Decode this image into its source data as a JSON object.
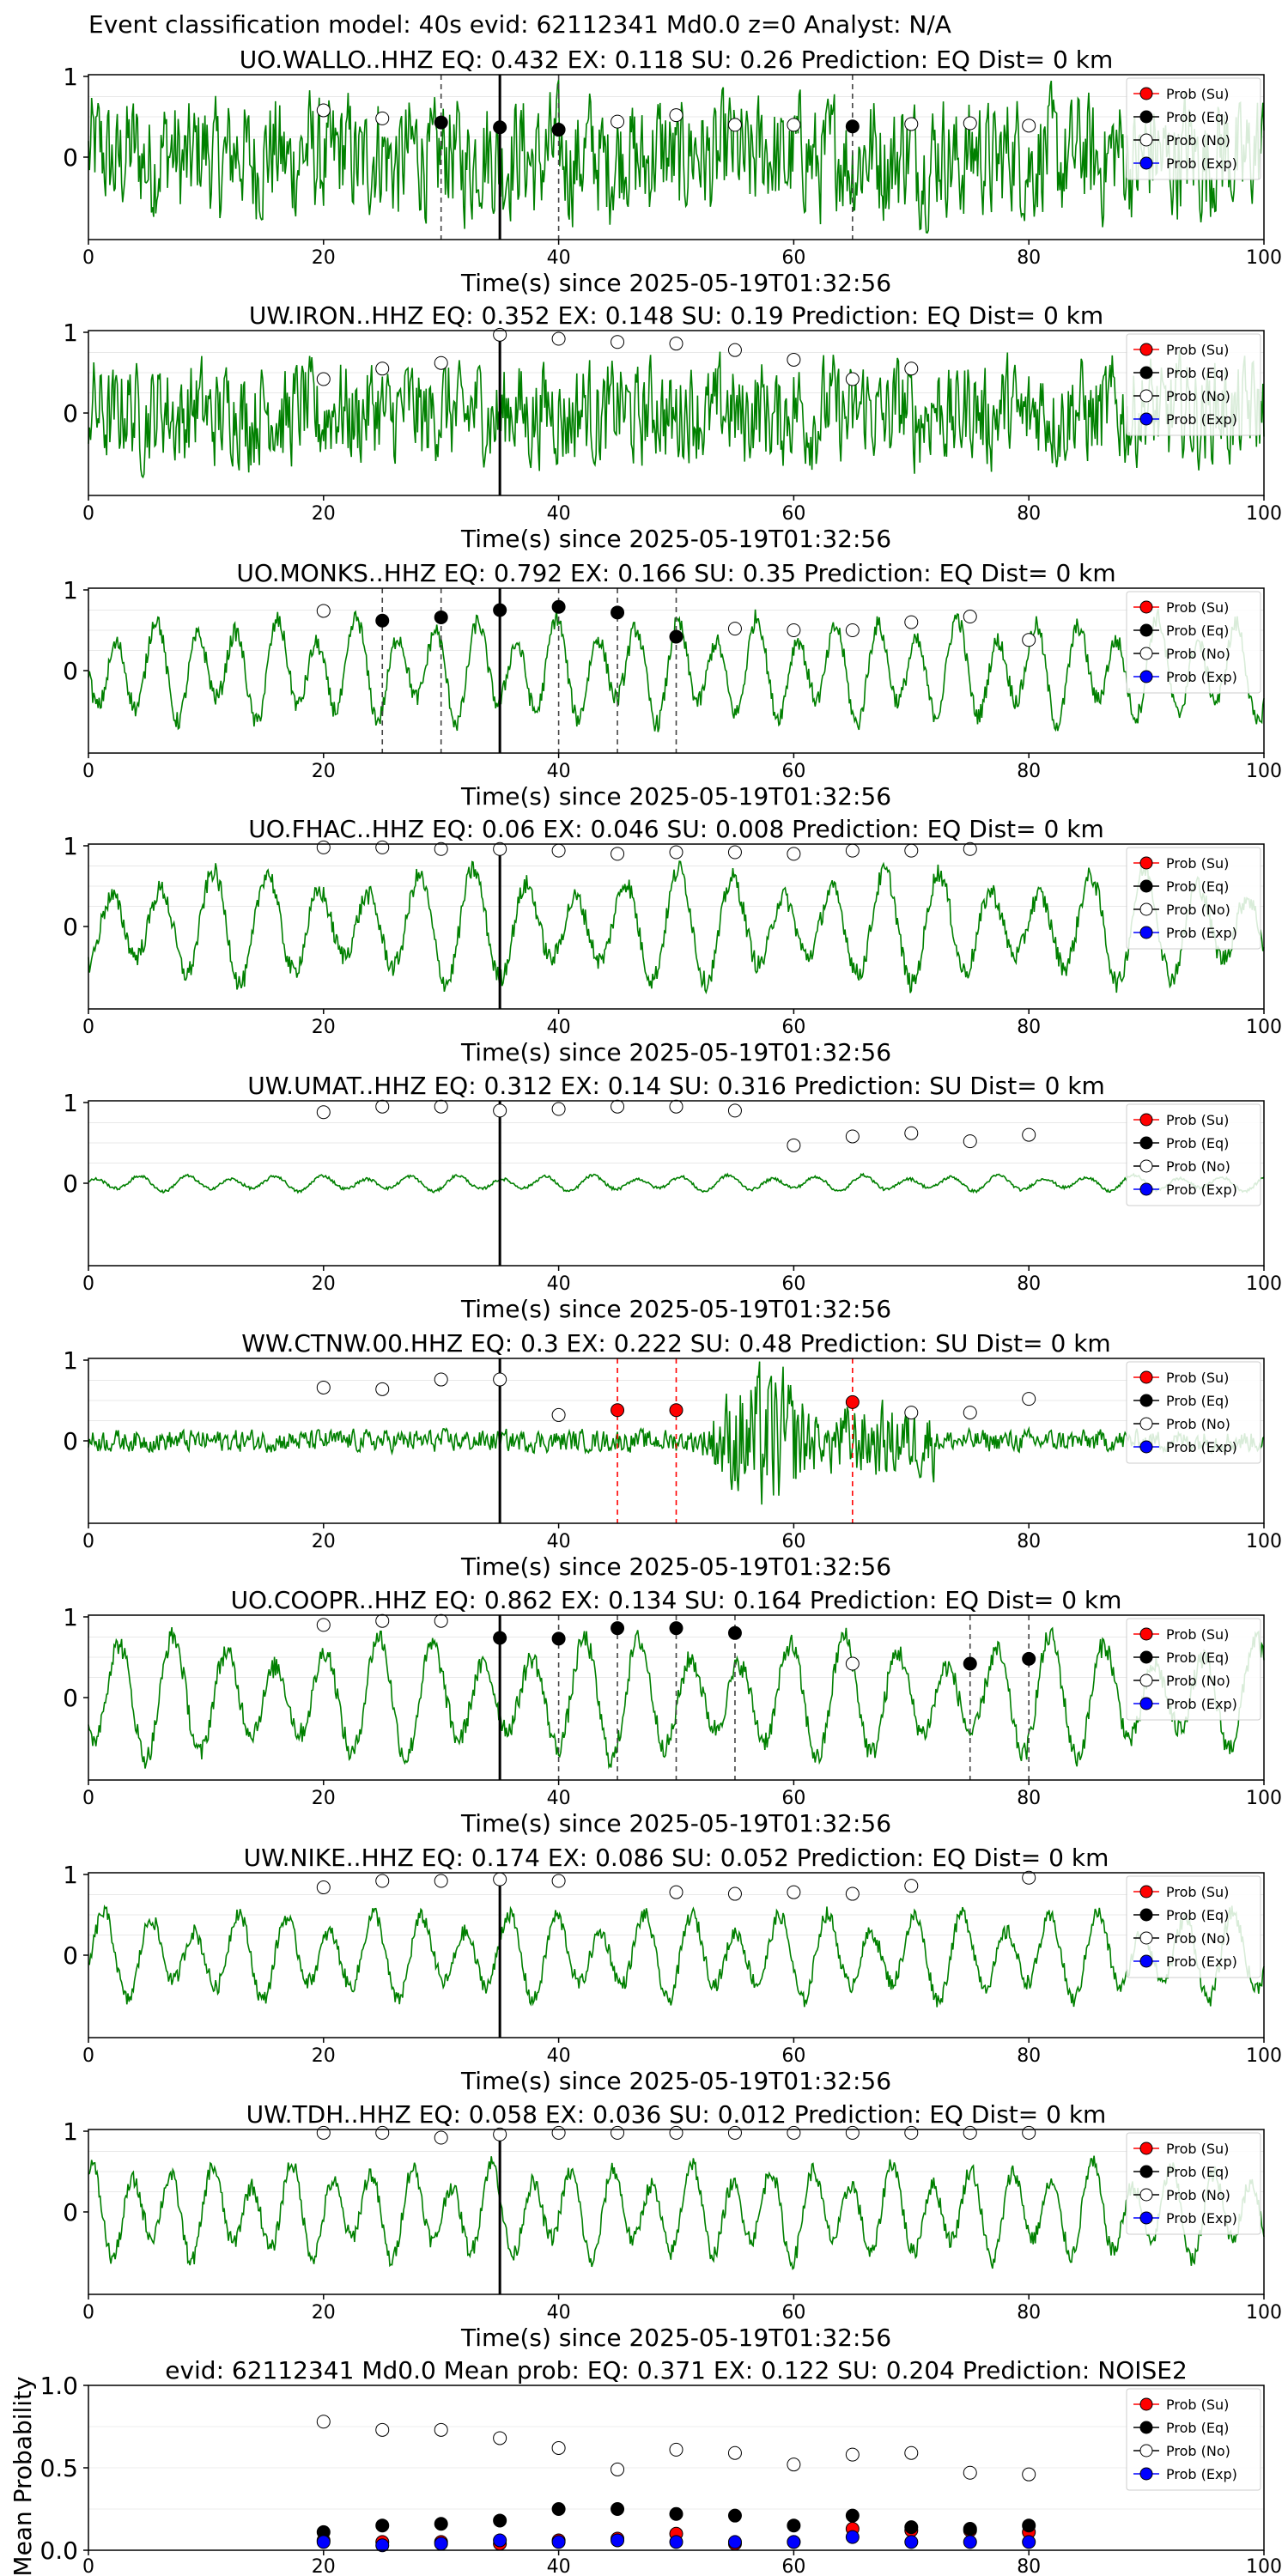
{
  "figure": {
    "suptitle": "Event classification model: 40s evid: 62112341 Md0.0 z=0 Analyst: N/A",
    "xlabel": "Time(s) since 2025-05-19T01:32:56",
    "legend": [
      "Prob (Su)",
      "Prob (Eq)",
      "Prob (No)",
      "Prob (Exp)"
    ],
    "colors": {
      "su": "#ff0000",
      "eq": "#000000",
      "no": "#ffffff",
      "exp": "#0000ff",
      "trace": "#008000",
      "arrival": "#000000"
    },
    "x_ticks": [
      0,
      20,
      40,
      60,
      80,
      100
    ]
  },
  "chart_data": [
    {
      "type": "line",
      "station": "UO.WALLO..HHZ",
      "title": "UO.WALLO..HHZ   EQ: 0.432  EX: 0.118  SU: 0.26   Prediction: EQ    Dist= 0 km",
      "xlim": [
        0,
        100
      ],
      "y_ticks": [
        "1",
        "0"
      ],
      "arrival": 35,
      "trace_amp": 0.7,
      "trace_style": "noise",
      "points": [
        {
          "x": 20,
          "y": 0.58,
          "cls": "no"
        },
        {
          "x": 25,
          "y": 0.48,
          "cls": "no"
        },
        {
          "x": 30,
          "y": 0.43,
          "cls": "eq"
        },
        {
          "x": 35,
          "y": 0.37,
          "cls": "eq"
        },
        {
          "x": 40,
          "y": 0.34,
          "cls": "eq"
        },
        {
          "x": 45,
          "y": 0.44,
          "cls": "no"
        },
        {
          "x": 50,
          "y": 0.52,
          "cls": "no"
        },
        {
          "x": 55,
          "y": 0.4,
          "cls": "no"
        },
        {
          "x": 60,
          "y": 0.4,
          "cls": "no"
        },
        {
          "x": 65,
          "y": 0.38,
          "cls": "eq"
        },
        {
          "x": 70,
          "y": 0.41,
          "cls": "no"
        },
        {
          "x": 75,
          "y": 0.42,
          "cls": "no"
        },
        {
          "x": 80,
          "y": 0.39,
          "cls": "no"
        }
      ]
    },
    {
      "type": "line",
      "station": "UW.IRON..HHZ",
      "title": "UW.IRON..HHZ   EQ: 0.352  EX: 0.148  SU: 0.19   Prediction: EQ    Dist= 0 km",
      "xlim": [
        0,
        100
      ],
      "y_ticks": [
        "1",
        "0"
      ],
      "arrival": 35,
      "trace_amp": 0.6,
      "trace_style": "noise",
      "points": [
        {
          "x": 20,
          "y": 0.42,
          "cls": "no"
        },
        {
          "x": 25,
          "y": 0.55,
          "cls": "no"
        },
        {
          "x": 30,
          "y": 0.62,
          "cls": "no"
        },
        {
          "x": 35,
          "y": 0.97,
          "cls": "no"
        },
        {
          "x": 40,
          "y": 0.92,
          "cls": "no"
        },
        {
          "x": 45,
          "y": 0.88,
          "cls": "no"
        },
        {
          "x": 50,
          "y": 0.86,
          "cls": "no"
        },
        {
          "x": 55,
          "y": 0.78,
          "cls": "no"
        },
        {
          "x": 60,
          "y": 0.66,
          "cls": "no"
        },
        {
          "x": 65,
          "y": 0.42,
          "cls": "no"
        },
        {
          "x": 70,
          "y": 0.55,
          "cls": "no"
        }
      ]
    },
    {
      "type": "line",
      "station": "UO.MONKS..HHZ",
      "title": "UO.MONKS..HHZ   EQ: 0.792  EX: 0.166  SU: 0.35   Prediction: EQ    Dist= 0 km",
      "xlim": [
        0,
        100
      ],
      "y_ticks": [
        "1",
        "0"
      ],
      "arrival": 35,
      "trace_amp": 0.65,
      "trace_style": "wavy",
      "points": [
        {
          "x": 20,
          "y": 0.74,
          "cls": "no"
        },
        {
          "x": 25,
          "y": 0.62,
          "cls": "eq"
        },
        {
          "x": 30,
          "y": 0.66,
          "cls": "eq"
        },
        {
          "x": 35,
          "y": 0.75,
          "cls": "eq"
        },
        {
          "x": 40,
          "y": 0.79,
          "cls": "eq"
        },
        {
          "x": 45,
          "y": 0.72,
          "cls": "eq"
        },
        {
          "x": 50,
          "y": 0.42,
          "cls": "eq"
        },
        {
          "x": 55,
          "y": 0.52,
          "cls": "no"
        },
        {
          "x": 60,
          "y": 0.5,
          "cls": "no"
        },
        {
          "x": 65,
          "y": 0.5,
          "cls": "no"
        },
        {
          "x": 70,
          "y": 0.6,
          "cls": "no"
        },
        {
          "x": 75,
          "y": 0.67,
          "cls": "no"
        },
        {
          "x": 80,
          "y": 0.38,
          "cls": "no"
        }
      ]
    },
    {
      "type": "line",
      "station": "UO.FHAC..HHZ",
      "title": "UO.FHAC..HHZ   EQ: 0.06  EX: 0.046  SU: 0.008   Prediction: EQ    Dist= 0 km",
      "xlim": [
        0,
        100
      ],
      "y_ticks": [
        "1",
        "0"
      ],
      "arrival": 35,
      "trace_amp": 0.7,
      "trace_style": "wavy",
      "points": [
        {
          "x": 20,
          "y": 0.98,
          "cls": "no"
        },
        {
          "x": 25,
          "y": 0.98,
          "cls": "no"
        },
        {
          "x": 30,
          "y": 0.96,
          "cls": "no"
        },
        {
          "x": 35,
          "y": 0.96,
          "cls": "no"
        },
        {
          "x": 40,
          "y": 0.94,
          "cls": "no"
        },
        {
          "x": 45,
          "y": 0.9,
          "cls": "no"
        },
        {
          "x": 50,
          "y": 0.92,
          "cls": "no"
        },
        {
          "x": 55,
          "y": 0.92,
          "cls": "no"
        },
        {
          "x": 60,
          "y": 0.9,
          "cls": "no"
        },
        {
          "x": 65,
          "y": 0.94,
          "cls": "no"
        },
        {
          "x": 70,
          "y": 0.94,
          "cls": "no"
        },
        {
          "x": 75,
          "y": 0.96,
          "cls": "no"
        }
      ]
    },
    {
      "type": "line",
      "station": "UW.UMAT..HHZ",
      "title": "UW.UMAT..HHZ   EQ: 0.312  EX: 0.14  SU: 0.316   Prediction: SU    Dist= 0 km",
      "xlim": [
        0,
        100
      ],
      "y_ticks": [
        "1",
        "0"
      ],
      "arrival": 35,
      "trace_amp": 0.1,
      "trace_style": "wavy",
      "points": [
        {
          "x": 20,
          "y": 0.88,
          "cls": "no"
        },
        {
          "x": 25,
          "y": 0.95,
          "cls": "no"
        },
        {
          "x": 30,
          "y": 0.95,
          "cls": "no"
        },
        {
          "x": 35,
          "y": 0.9,
          "cls": "no"
        },
        {
          "x": 40,
          "y": 0.92,
          "cls": "no"
        },
        {
          "x": 45,
          "y": 0.95,
          "cls": "no"
        },
        {
          "x": 50,
          "y": 0.95,
          "cls": "no"
        },
        {
          "x": 55,
          "y": 0.9,
          "cls": "no"
        },
        {
          "x": 60,
          "y": 0.47,
          "cls": "no"
        },
        {
          "x": 65,
          "y": 0.58,
          "cls": "no"
        },
        {
          "x": 70,
          "y": 0.62,
          "cls": "no"
        },
        {
          "x": 75,
          "y": 0.52,
          "cls": "no"
        },
        {
          "x": 80,
          "y": 0.6,
          "cls": "no"
        }
      ]
    },
    {
      "type": "line",
      "station": "WW.CTNW.00.HHZ",
      "title": "WW.CTNW.00.HHZ   EQ: 0.3  EX: 0.222  SU: 0.48   Prediction: SU    Dist= 0 km",
      "xlim": [
        0,
        100
      ],
      "y_ticks": [
        "1",
        "0"
      ],
      "arrival": 35,
      "trace_amp": 0.15,
      "trace_style": "burst",
      "points": [
        {
          "x": 20,
          "y": 0.66,
          "cls": "no"
        },
        {
          "x": 25,
          "y": 0.64,
          "cls": "no"
        },
        {
          "x": 30,
          "y": 0.76,
          "cls": "no"
        },
        {
          "x": 35,
          "y": 0.76,
          "cls": "no"
        },
        {
          "x": 40,
          "y": 0.32,
          "cls": "no"
        },
        {
          "x": 45,
          "y": 0.38,
          "cls": "su"
        },
        {
          "x": 50,
          "y": 0.38,
          "cls": "su"
        },
        {
          "x": 65,
          "y": 0.48,
          "cls": "su"
        },
        {
          "x": 70,
          "y": 0.35,
          "cls": "no"
        },
        {
          "x": 75,
          "y": 0.35,
          "cls": "no"
        },
        {
          "x": 80,
          "y": 0.52,
          "cls": "no"
        }
      ]
    },
    {
      "type": "line",
      "station": "UO.COOPR..HHZ",
      "title": "UO.COOPR..HHZ   EQ: 0.862  EX: 0.134  SU: 0.164   Prediction: EQ    Dist= 0 km",
      "xlim": [
        0,
        100
      ],
      "y_ticks": [
        "1",
        "0"
      ],
      "arrival": 35,
      "trace_amp": 0.75,
      "trace_style": "wavy",
      "points": [
        {
          "x": 20,
          "y": 0.9,
          "cls": "no"
        },
        {
          "x": 25,
          "y": 0.95,
          "cls": "no"
        },
        {
          "x": 30,
          "y": 0.95,
          "cls": "no"
        },
        {
          "x": 35,
          "y": 0.74,
          "cls": "eq"
        },
        {
          "x": 40,
          "y": 0.73,
          "cls": "eq"
        },
        {
          "x": 45,
          "y": 0.86,
          "cls": "eq"
        },
        {
          "x": 50,
          "y": 0.86,
          "cls": "eq"
        },
        {
          "x": 55,
          "y": 0.8,
          "cls": "eq"
        },
        {
          "x": 65,
          "y": 0.42,
          "cls": "no"
        },
        {
          "x": 75,
          "y": 0.42,
          "cls": "eq"
        },
        {
          "x": 80,
          "y": 0.48,
          "cls": "eq"
        }
      ]
    },
    {
      "type": "line",
      "station": "UW.NIKE..HHZ",
      "title": "UW.NIKE..HHZ   EQ: 0.174  EX: 0.086  SU: 0.052   Prediction: EQ    Dist= 0 km",
      "xlim": [
        0,
        100
      ],
      "y_ticks": [
        "1",
        "0"
      ],
      "arrival": 35,
      "trace_amp": 0.55,
      "trace_style": "wavy",
      "points": [
        {
          "x": 20,
          "y": 0.84,
          "cls": "no"
        },
        {
          "x": 25,
          "y": 0.92,
          "cls": "no"
        },
        {
          "x": 30,
          "y": 0.92,
          "cls": "no"
        },
        {
          "x": 35,
          "y": 0.94,
          "cls": "no"
        },
        {
          "x": 40,
          "y": 0.92,
          "cls": "no"
        },
        {
          "x": 50,
          "y": 0.78,
          "cls": "no"
        },
        {
          "x": 55,
          "y": 0.76,
          "cls": "no"
        },
        {
          "x": 60,
          "y": 0.78,
          "cls": "no"
        },
        {
          "x": 65,
          "y": 0.76,
          "cls": "no"
        },
        {
          "x": 70,
          "y": 0.86,
          "cls": "no"
        },
        {
          "x": 80,
          "y": 0.96,
          "cls": "no"
        }
      ]
    },
    {
      "type": "line",
      "station": "UW.TDH..HHZ",
      "title": "UW.TDH..HHZ   EQ: 0.058  EX: 0.036  SU: 0.012   Prediction: EQ    Dist= 0 km",
      "xlim": [
        0,
        100
      ],
      "y_ticks": [
        "1",
        "0"
      ],
      "arrival": 35,
      "trace_amp": 0.6,
      "trace_style": "wavy",
      "points": [
        {
          "x": 20,
          "y": 0.98,
          "cls": "no"
        },
        {
          "x": 25,
          "y": 0.98,
          "cls": "no"
        },
        {
          "x": 30,
          "y": 0.92,
          "cls": "no"
        },
        {
          "x": 35,
          "y": 0.96,
          "cls": "no"
        },
        {
          "x": 40,
          "y": 0.98,
          "cls": "no"
        },
        {
          "x": 45,
          "y": 0.98,
          "cls": "no"
        },
        {
          "x": 50,
          "y": 0.98,
          "cls": "no"
        },
        {
          "x": 55,
          "y": 0.98,
          "cls": "no"
        },
        {
          "x": 60,
          "y": 0.98,
          "cls": "no"
        },
        {
          "x": 65,
          "y": 0.98,
          "cls": "no"
        },
        {
          "x": 70,
          "y": 0.98,
          "cls": "no"
        },
        {
          "x": 75,
          "y": 0.98,
          "cls": "no"
        },
        {
          "x": 80,
          "y": 0.98,
          "cls": "no"
        }
      ]
    },
    {
      "type": "scatter",
      "station": "mean",
      "title": "evid: 62112341  Md0.0   Mean prob:    EQ: 0.371  EX: 0.122  SU: 0.204   Prediction: NOISE2",
      "ylabel": "Mean Probability",
      "xlim": [
        0,
        100
      ],
      "ylim": [
        0,
        1
      ],
      "x_ticks": [
        "0",
        "20",
        "40",
        "60",
        "80",
        "100"
      ],
      "y_ticks": [
        "0.0",
        "0.5",
        "1.0"
      ],
      "x": [
        20,
        25,
        30,
        35,
        40,
        45,
        50,
        55,
        60,
        65,
        70,
        75,
        80
      ],
      "series": [
        {
          "name": "Prob (Su)",
          "cls": "su",
          "values": [
            0.06,
            0.05,
            0.05,
            0.04,
            0.06,
            0.07,
            0.1,
            0.04,
            0.05,
            0.13,
            0.12,
            0.12,
            0.11
          ]
        },
        {
          "name": "Prob (Eq)",
          "cls": "eq",
          "values": [
            0.11,
            0.15,
            0.16,
            0.18,
            0.25,
            0.25,
            0.22,
            0.21,
            0.15,
            0.21,
            0.14,
            0.13,
            0.15
          ]
        },
        {
          "name": "Prob (No)",
          "cls": "no",
          "values": [
            0.78,
            0.73,
            0.73,
            0.68,
            0.62,
            0.49,
            0.61,
            0.59,
            0.52,
            0.58,
            0.59,
            0.47,
            0.46
          ]
        },
        {
          "name": "Prob (Exp)",
          "cls": "exp",
          "values": [
            0.05,
            0.03,
            0.04,
            0.06,
            0.05,
            0.06,
            0.05,
            0.05,
            0.05,
            0.08,
            0.05,
            0.05,
            0.05
          ]
        }
      ]
    }
  ]
}
